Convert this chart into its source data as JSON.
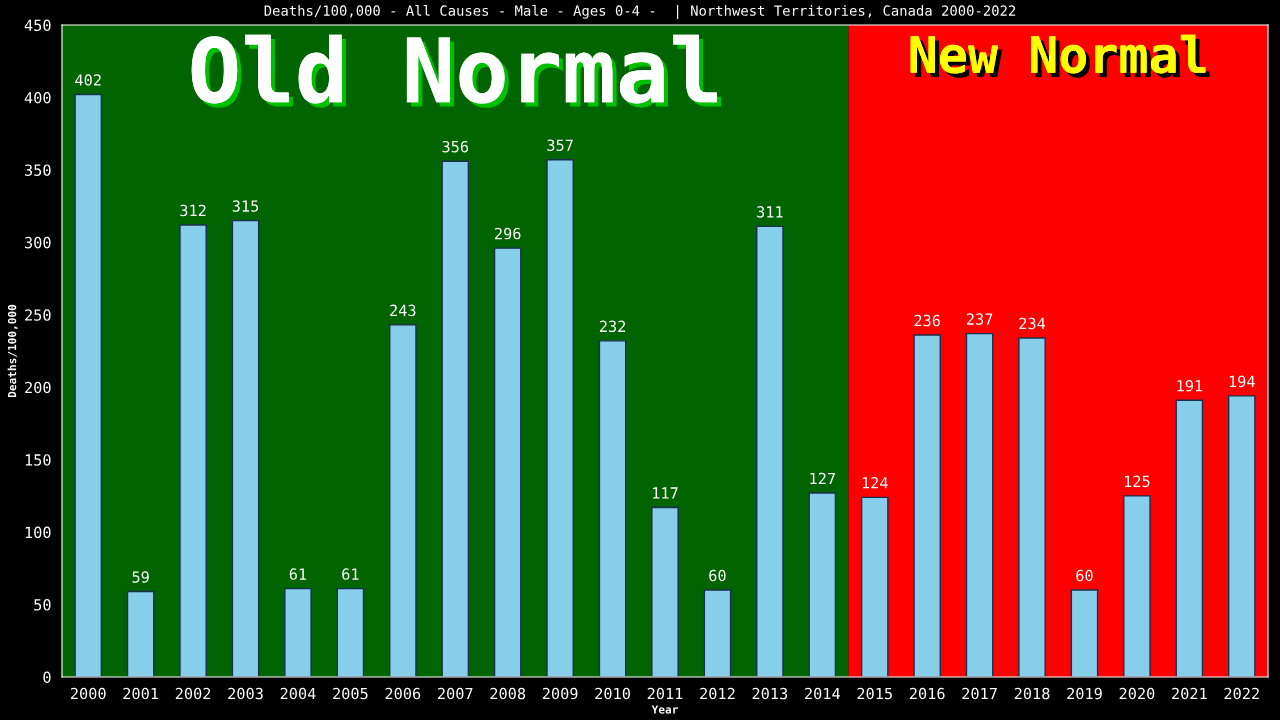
{
  "chart_data": {
    "type": "bar",
    "title": "Deaths/100,000 - All Causes - Male - Ages 0-4 -  | Northwest Territories, Canada 2000-2022",
    "xlabel": "Year",
    "ylabel": "Deaths/100,000",
    "categories": [
      "2000",
      "2001",
      "2002",
      "2003",
      "2004",
      "2005",
      "2006",
      "2007",
      "2008",
      "2009",
      "2010",
      "2011",
      "2012",
      "2013",
      "2014",
      "2015",
      "2016",
      "2017",
      "2018",
      "2019",
      "2020",
      "2021",
      "2022"
    ],
    "values": [
      402,
      59,
      312,
      315,
      61,
      61,
      243,
      356,
      296,
      357,
      232,
      117,
      60,
      311,
      127,
      124,
      236,
      237,
      234,
      60,
      125,
      191,
      194
    ],
    "color": "#87ceeb",
    "ylim": [
      0,
      450
    ],
    "yticks": [
      0,
      50,
      100,
      150,
      200,
      250,
      300,
      350,
      400,
      450
    ],
    "grid": false,
    "data_labels": true,
    "bands": [
      {
        "axis": "x",
        "from": "2000",
        "to": "2014",
        "label": "Old Normal",
        "color": "#006400"
      },
      {
        "axis": "x",
        "from": "2015",
        "to": "2022",
        "label": "New Normal",
        "color": "#ff0000"
      }
    ]
  }
}
